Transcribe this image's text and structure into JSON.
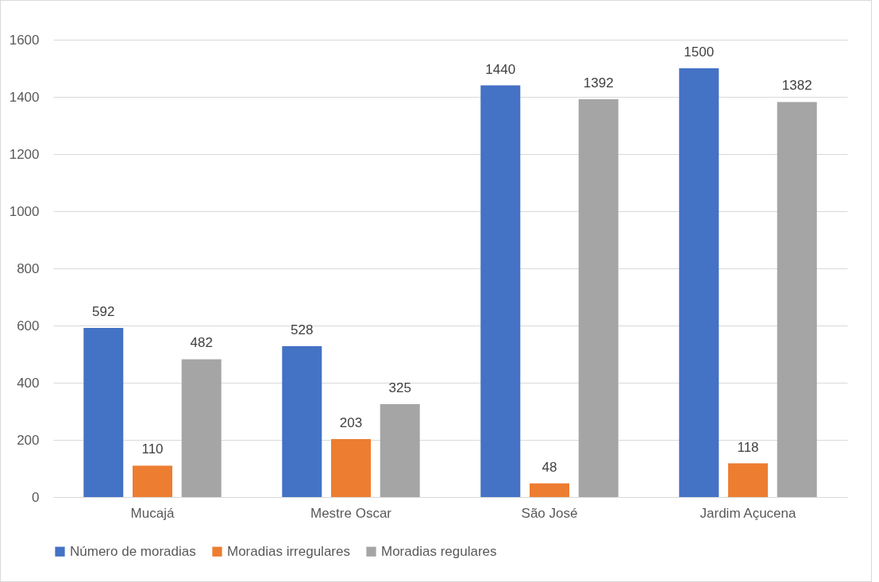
{
  "chart_data": {
    "type": "bar",
    "categories": [
      "Mucajá",
      "Mestre Oscar",
      "São José",
      "Jardim Açucena"
    ],
    "series": [
      {
        "name": "Número de moradias",
        "color": "#4472c4",
        "values": [
          592,
          528,
          1440,
          1500
        ]
      },
      {
        "name": "Moradias irregulares",
        "color": "#ed7d31",
        "values": [
          110,
          203,
          48,
          118
        ]
      },
      {
        "name": "Moradias regulares",
        "color": "#a5a5a5",
        "values": [
          482,
          325,
          1392,
          1382
        ]
      }
    ],
    "ylim": [
      0,
      1600
    ],
    "yticks": [
      0,
      200,
      400,
      600,
      800,
      1000,
      1200,
      1400,
      1600
    ],
    "grid": "y",
    "legend": "bottom",
    "data_labels": true
  }
}
